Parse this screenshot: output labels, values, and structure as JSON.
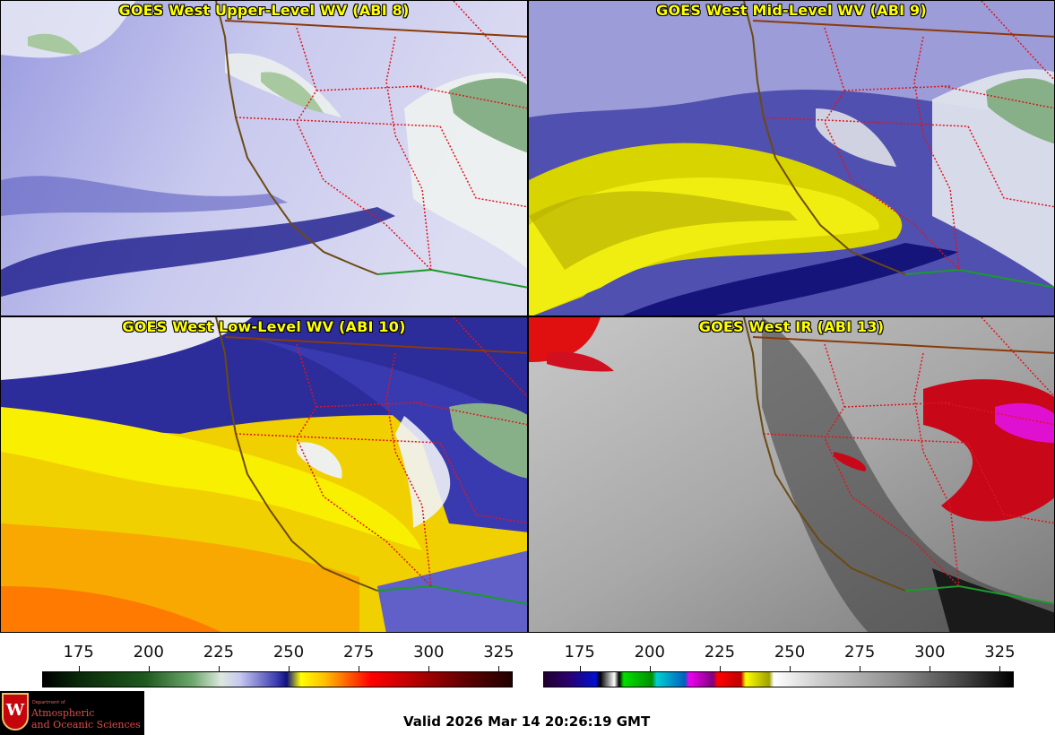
{
  "panels": [
    {
      "title": "GOES West Upper-Level WV (ABI 8)"
    },
    {
      "title": "GOES West Mid-Level WV (ABI 9)"
    },
    {
      "title": "GOES West Low-Level WV (ABI 10)"
    },
    {
      "title": "GOES West IR (ABI 13)"
    }
  ],
  "colorbars": {
    "wv": {
      "ticks": [
        "175",
        "200",
        "225",
        "250",
        "275",
        "300",
        "325"
      ],
      "tick_values": [
        175,
        200,
        225,
        250,
        275,
        300,
        325
      ],
      "range": [
        162,
        330
      ]
    },
    "ir": {
      "ticks": [
        "175",
        "200",
        "225",
        "250",
        "275",
        "300",
        "325"
      ],
      "tick_values": [
        175,
        200,
        225,
        250,
        275,
        300,
        325
      ],
      "range": [
        162,
        330
      ]
    }
  },
  "logo": {
    "crest_letter": "W",
    "dept_line": "Department of",
    "line1": "Atmospheric",
    "line2": "and Oceanic Sciences"
  },
  "valid_text": "Valid 2026 Mar 14 20:26:19 GMT",
  "colors": {
    "title_text": "#ffff00",
    "state_borders": "#e0141e",
    "coastline": "#6b4a12",
    "mexico_border": "#1a9a2a",
    "canada_border": "#8b3a0a"
  }
}
